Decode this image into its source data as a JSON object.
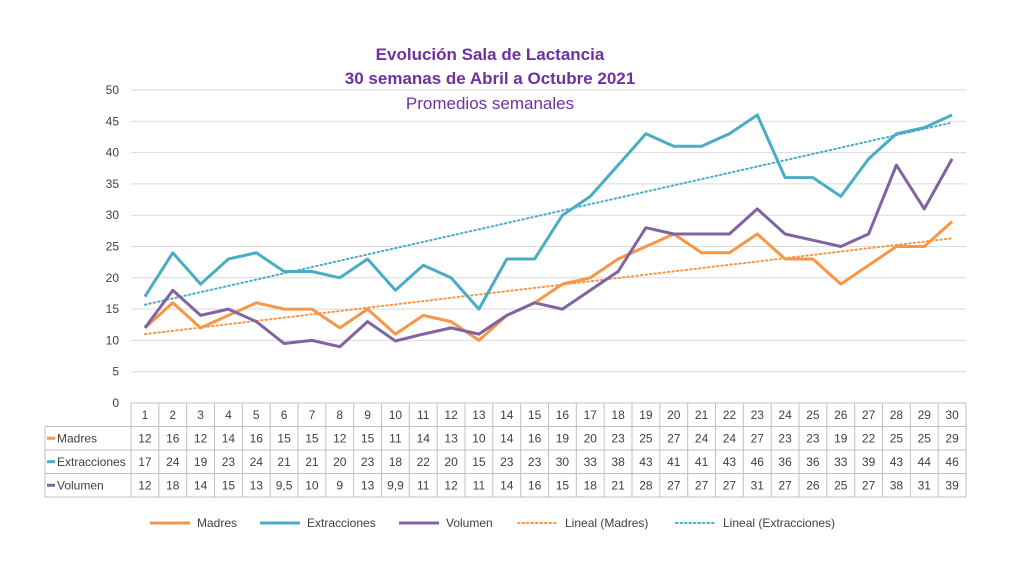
{
  "chart_data": {
    "type": "line",
    "title": "Evolución Sala de Lactancia",
    "title_line2": "30 semanas de Abril a Octubre 2021",
    "subtitle": "Promedios semanales",
    "categories": [
      "1",
      "2",
      "3",
      "4",
      "5",
      "6",
      "7",
      "8",
      "9",
      "10",
      "11",
      "12",
      "13",
      "14",
      "15",
      "16",
      "17",
      "18",
      "19",
      "20",
      "21",
      "22",
      "23",
      "24",
      "25",
      "26",
      "27",
      "28",
      "29",
      "30"
    ],
    "ylim": [
      0,
      50
    ],
    "yticks": [
      0,
      5,
      10,
      15,
      20,
      25,
      30,
      35,
      40,
      45,
      50
    ],
    "grid": true,
    "legend_position": "bottom",
    "series": [
      {
        "name": "Madres",
        "color": "#f79646",
        "values": [
          12,
          16,
          12,
          14,
          16,
          15,
          15,
          12,
          15,
          11,
          14,
          13,
          10,
          14,
          16,
          19,
          20,
          23,
          25,
          27,
          24,
          24,
          27,
          23,
          23,
          19,
          22,
          25,
          25,
          29
        ],
        "labels": [
          "12",
          "16",
          "12",
          "14",
          "16",
          "15",
          "15",
          "12",
          "15",
          "11",
          "14",
          "13",
          "10",
          "14",
          "16",
          "19",
          "20",
          "23",
          "25",
          "27",
          "24",
          "24",
          "27",
          "23",
          "23",
          "19",
          "22",
          "25",
          "25",
          "29"
        ]
      },
      {
        "name": "Extracciones",
        "color": "#4bacc6",
        "values": [
          17,
          24,
          19,
          23,
          24,
          21,
          21,
          20,
          23,
          18,
          22,
          20,
          15,
          23,
          23,
          30,
          33,
          38,
          43,
          41,
          41,
          43,
          46,
          36,
          36,
          33,
          39,
          43,
          44,
          46
        ],
        "labels": [
          "17",
          "24",
          "19",
          "23",
          "24",
          "21",
          "21",
          "20",
          "23",
          "18",
          "22",
          "20",
          "15",
          "23",
          "23",
          "30",
          "33",
          "38",
          "43",
          "41",
          "41",
          "43",
          "46",
          "36",
          "36",
          "33",
          "39",
          "43",
          "44",
          "46"
        ]
      },
      {
        "name": "Volumen",
        "color": "#8064a2",
        "values": [
          12,
          18,
          14,
          15,
          13,
          9.5,
          10,
          9,
          13,
          9.9,
          11,
          12,
          11,
          14,
          16,
          15,
          18,
          21,
          28,
          27,
          27,
          27,
          31,
          27,
          26,
          25,
          27,
          38,
          31,
          39
        ],
        "labels": [
          "12",
          "18",
          "14",
          "15",
          "13",
          "9,5",
          "10",
          "9",
          "13",
          "9,9",
          "11",
          "12",
          "11",
          "14",
          "16",
          "15",
          "18",
          "21",
          "28",
          "27",
          "27",
          "27",
          "31",
          "27",
          "26",
          "25",
          "27",
          "38",
          "31",
          "39"
        ]
      }
    ],
    "trendlines": [
      {
        "name": "Lineal (Madres)",
        "color": "#f79646",
        "start": 11,
        "end": 26.3
      },
      {
        "name": "Lineal (Extracciones)",
        "color": "#4bacc6",
        "start": 15.7,
        "end": 44.8
      }
    ]
  }
}
